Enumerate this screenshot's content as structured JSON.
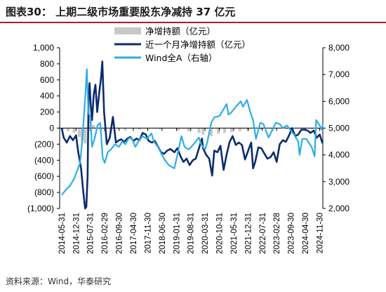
{
  "title": "图表30：  上期二级市场重要股东净减持 37 亿元",
  "source": "资料来源：Wind，华泰研究",
  "colors": {
    "title_rule": "#b01e28",
    "bars": "#c8c8c8",
    "monthly_line": "#0d2b6e",
    "wind_a_line": "#2eaee6"
  },
  "chart_data": {
    "type": "bar+line",
    "legend_position": "top-center",
    "grid": false,
    "x_categories": [
      "2014-05-31",
      "2014-12-31",
      "2015-07-31",
      "2016-02-29",
      "2016-09-30",
      "2017-04-30",
      "2017-11-30",
      "2018-06-30",
      "2019-01-31",
      "2019-08-31",
      "2020-03-31",
      "2020-10-31",
      "2021-05-31",
      "2021-12-31",
      "2022-07-31",
      "2023-02-28",
      "2023-09-30",
      "2024-04-30",
      "2024-11-30"
    ],
    "x_range": [
      "2014-05-01",
      "2025-01-15"
    ],
    "left_axis": {
      "range": [
        -1000,
        1000
      ],
      "ticks": [
        1000,
        800,
        600,
        400,
        200,
        0,
        -200,
        -400,
        -600,
        -800,
        -1000
      ],
      "tick_labels": [
        "1,000",
        "800",
        "600",
        "400",
        "200",
        "0",
        "(200)",
        "(400)",
        "(600)",
        "(800)",
        "(1,000)"
      ]
    },
    "right_axis": {
      "range": [
        2000,
        8000
      ],
      "ticks": [
        8000,
        7000,
        6000,
        5000,
        4000,
        3000,
        2000
      ],
      "tick_labels": [
        "8,000",
        "7,000",
        "6,000",
        "5,000",
        "4,000",
        "3,000",
        "2,000"
      ]
    },
    "legend": [
      "净增持额（亿元）",
      "近一个月净增持额（亿元）",
      "Wind全A（右轴）"
    ],
    "series": [
      {
        "name": "净增持额（亿元）",
        "kind": "bar",
        "axis": "left",
        "points": [
          [
            "2014-06-15",
            -20
          ],
          [
            "2014-09-01",
            -40
          ],
          [
            "2014-12-01",
            -60
          ],
          [
            "2015-02-15",
            -110
          ],
          [
            "2015-04-01",
            -160
          ],
          [
            "2015-05-15",
            -190
          ],
          [
            "2015-07-10",
            130
          ],
          [
            "2015-08-01",
            100
          ],
          [
            "2015-09-15",
            40
          ],
          [
            "2016-01-01",
            -30
          ],
          [
            "2016-06-01",
            -40
          ],
          [
            "2017-01-01",
            -30
          ],
          [
            "2017-08-01",
            -20
          ],
          [
            "2018-06-01",
            -10
          ],
          [
            "2019-03-01",
            -30
          ],
          [
            "2019-08-01",
            -40
          ],
          [
            "2020-01-01",
            -60
          ],
          [
            "2020-03-01",
            -80
          ],
          [
            "2020-07-01",
            -100
          ],
          [
            "2020-10-15",
            -70
          ],
          [
            "2021-01-15",
            -60
          ],
          [
            "2021-05-01",
            -50
          ],
          [
            "2021-09-01",
            -40
          ],
          [
            "2022-01-01",
            -30
          ],
          [
            "2022-07-01",
            -20
          ],
          [
            "2023-01-01",
            -30
          ],
          [
            "2023-08-15",
            -10
          ],
          [
            "2024-02-01",
            5
          ],
          [
            "2024-08-01",
            -10
          ],
          [
            "2024-12-01",
            -20
          ]
        ]
      },
      {
        "name": "近一个月净增持额（亿元）",
        "kind": "line",
        "axis": "left",
        "points": [
          [
            "2014-05-31",
            0
          ],
          [
            "2014-07-01",
            -120
          ],
          [
            "2014-08-15",
            -180
          ],
          [
            "2014-10-01",
            -100
          ],
          [
            "2014-11-15",
            -150
          ],
          [
            "2014-12-31",
            -90
          ],
          [
            "2015-02-01",
            -300
          ],
          [
            "2015-03-15",
            -500
          ],
          [
            "2015-04-15",
            -780
          ],
          [
            "2015-05-15",
            -1000
          ],
          [
            "2015-06-01",
            -980
          ],
          [
            "2015-06-20",
            -600
          ],
          [
            "2015-07-05",
            380
          ],
          [
            "2015-07-20",
            560
          ],
          [
            "2015-08-05",
            300
          ],
          [
            "2015-08-25",
            100
          ],
          [
            "2015-09-20",
            420
          ],
          [
            "2015-10-15",
            540
          ],
          [
            "2015-11-10",
            200
          ],
          [
            "2015-12-10",
            440
          ],
          [
            "2016-01-05",
            620
          ],
          [
            "2016-01-25",
            830
          ],
          [
            "2016-02-20",
            200
          ],
          [
            "2016-04-01",
            -200
          ],
          [
            "2016-05-15",
            -120
          ],
          [
            "2016-07-01",
            140
          ],
          [
            "2016-08-15",
            -180
          ],
          [
            "2016-09-30",
            -150
          ],
          [
            "2016-11-01",
            -140
          ],
          [
            "2016-12-15",
            -170
          ],
          [
            "2017-02-01",
            -130
          ],
          [
            "2017-03-15",
            -110
          ],
          [
            "2017-05-01",
            -160
          ],
          [
            "2017-06-15",
            -130
          ],
          [
            "2017-08-01",
            -150
          ],
          [
            "2017-09-15",
            -60
          ],
          [
            "2017-11-01",
            -80
          ],
          [
            "2017-12-15",
            -160
          ],
          [
            "2018-02-01",
            -180
          ],
          [
            "2018-03-15",
            -160
          ],
          [
            "2018-05-01",
            -230
          ],
          [
            "2018-06-15",
            -300
          ],
          [
            "2018-08-01",
            -320
          ],
          [
            "2018-09-15",
            -280
          ],
          [
            "2018-11-01",
            -260
          ],
          [
            "2019-01-01",
            -300
          ],
          [
            "2019-02-15",
            -250
          ],
          [
            "2019-04-01",
            -350
          ],
          [
            "2019-05-15",
            -420
          ],
          [
            "2019-07-01",
            -380
          ],
          [
            "2019-08-15",
            -460
          ],
          [
            "2019-10-01",
            -400
          ],
          [
            "2019-11-15",
            -380
          ],
          [
            "2020-01-01",
            -250
          ],
          [
            "2020-02-15",
            -130
          ],
          [
            "2020-03-01",
            -250
          ],
          [
            "2020-04-15",
            -330
          ],
          [
            "2020-06-01",
            -380
          ],
          [
            "2020-07-15",
            -590
          ],
          [
            "2020-08-15",
            -280
          ],
          [
            "2020-10-01",
            -300
          ],
          [
            "2020-11-15",
            -220
          ],
          [
            "2021-01-01",
            -520
          ],
          [
            "2021-02-15",
            -330
          ],
          [
            "2021-04-01",
            -170
          ],
          [
            "2021-05-15",
            -100
          ],
          [
            "2021-07-01",
            -210
          ],
          [
            "2021-08-15",
            -180
          ],
          [
            "2021-10-01",
            -210
          ],
          [
            "2021-11-15",
            -390
          ],
          [
            "2022-01-01",
            -280
          ],
          [
            "2022-02-15",
            -180
          ],
          [
            "2022-03-15",
            -500
          ],
          [
            "2022-04-15",
            -420
          ],
          [
            "2022-06-01",
            -240
          ],
          [
            "2022-07-15",
            -250
          ],
          [
            "2022-09-01",
            -320
          ],
          [
            "2022-10-15",
            -380
          ],
          [
            "2022-12-01",
            -360
          ],
          [
            "2023-01-15",
            -300
          ],
          [
            "2023-03-01",
            -420
          ],
          [
            "2023-04-15",
            -200
          ],
          [
            "2023-06-01",
            -150
          ],
          [
            "2023-07-15",
            -170
          ],
          [
            "2023-09-01",
            -90
          ],
          [
            "2023-10-15",
            0
          ],
          [
            "2023-12-01",
            -100
          ],
          [
            "2024-01-15",
            -80
          ],
          [
            "2024-03-01",
            -20
          ],
          [
            "2024-04-15",
            -20
          ],
          [
            "2024-06-01",
            -30
          ],
          [
            "2024-07-15",
            -60
          ],
          [
            "2024-09-01",
            -30
          ],
          [
            "2024-10-15",
            -120
          ],
          [
            "2024-11-30",
            -80
          ],
          [
            "2025-01-10",
            -190
          ]
        ]
      },
      {
        "name": "Wind全A（右轴）",
        "kind": "line",
        "axis": "right",
        "points": [
          [
            "2014-05-31",
            2500
          ],
          [
            "2014-08-01",
            2700
          ],
          [
            "2014-10-01",
            2850
          ],
          [
            "2014-12-01",
            3100
          ],
          [
            "2015-01-15",
            3400
          ],
          [
            "2015-03-01",
            3700
          ],
          [
            "2015-04-01",
            4500
          ],
          [
            "2015-05-15",
            6100
          ],
          [
            "2015-06-10",
            7200
          ],
          [
            "2015-07-01",
            5600
          ],
          [
            "2015-08-01",
            5400
          ],
          [
            "2015-08-25",
            4300
          ],
          [
            "2015-10-01",
            4600
          ],
          [
            "2015-11-15",
            5100
          ],
          [
            "2015-12-25",
            5200
          ],
          [
            "2016-01-30",
            3900
          ],
          [
            "2016-03-01",
            3700
          ],
          [
            "2016-04-15",
            4100
          ],
          [
            "2016-06-01",
            4200
          ],
          [
            "2016-08-01",
            4400
          ],
          [
            "2016-09-30",
            4300
          ],
          [
            "2016-11-15",
            4500
          ],
          [
            "2017-01-01",
            4400
          ],
          [
            "2017-02-15",
            4600
          ],
          [
            "2017-04-01",
            4650
          ],
          [
            "2017-05-31",
            4300
          ],
          [
            "2017-07-15",
            4500
          ],
          [
            "2017-09-15",
            4700
          ],
          [
            "2017-11-15",
            4600
          ],
          [
            "2018-01-25",
            4800
          ],
          [
            "2018-03-01",
            4500
          ],
          [
            "2018-05-01",
            4300
          ],
          [
            "2018-06-30",
            4000
          ],
          [
            "2018-08-15",
            3800
          ],
          [
            "2018-10-15",
            3600
          ],
          [
            "2018-12-31",
            3500
          ],
          [
            "2019-02-15",
            4000
          ],
          [
            "2019-04-15",
            4700
          ],
          [
            "2019-06-01",
            4300
          ],
          [
            "2019-08-01",
            4200
          ],
          [
            "2019-10-15",
            4400
          ],
          [
            "2019-12-31",
            4650
          ],
          [
            "2020-02-01",
            4400
          ],
          [
            "2020-03-31",
            4200
          ],
          [
            "2020-05-01",
            4450
          ],
          [
            "2020-07-01",
            5200
          ],
          [
            "2020-08-15",
            5400
          ],
          [
            "2020-10-31",
            5450
          ],
          [
            "2020-12-31",
            5700
          ],
          [
            "2021-02-15",
            5900
          ],
          [
            "2021-03-15",
            5500
          ],
          [
            "2021-05-01",
            5600
          ],
          [
            "2021-07-01",
            5800
          ],
          [
            "2021-09-15",
            6000
          ],
          [
            "2021-10-15",
            5800
          ],
          [
            "2021-12-15",
            6050
          ],
          [
            "2022-01-31",
            5600
          ],
          [
            "2022-03-15",
            5300
          ],
          [
            "2022-04-27",
            4600
          ],
          [
            "2022-06-30",
            5200
          ],
          [
            "2022-08-15",
            5150
          ],
          [
            "2022-10-31",
            4650
          ],
          [
            "2022-12-31",
            4950
          ],
          [
            "2023-02-15",
            5200
          ],
          [
            "2023-04-15",
            5150
          ],
          [
            "2023-05-31",
            5000
          ],
          [
            "2023-07-31",
            5100
          ],
          [
            "2023-09-30",
            4900
          ],
          [
            "2023-11-15",
            4750
          ],
          [
            "2024-01-15",
            4500
          ],
          [
            "2024-02-05",
            4000
          ],
          [
            "2024-03-15",
            4600
          ],
          [
            "2024-05-15",
            4600
          ],
          [
            "2024-07-31",
            4300
          ],
          [
            "2024-09-15",
            3950
          ],
          [
            "2024-10-08",
            5300
          ],
          [
            "2024-11-15",
            5150
          ],
          [
            "2024-12-31",
            4950
          ],
          [
            "2025-01-15",
            5200
          ]
        ]
      }
    ]
  }
}
